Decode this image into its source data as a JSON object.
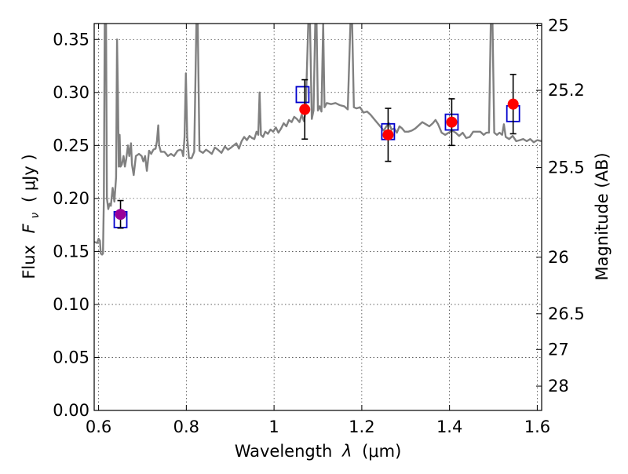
{
  "chart_data": {
    "type": "scatter",
    "xlabel_prefix": "Wavelength",
    "xlabel_symbol": "λ",
    "xlabel_unit": "(μm)",
    "ylabel_prefix": "Flux",
    "ylabel_symbol": "F",
    "ylabel_subscript": "ν",
    "ylabel_unit": "( μJy )",
    "y2label": "Magnitude (AB)",
    "xlim": [
      0.59,
      1.61
    ],
    "ylim": [
      0.0,
      0.365
    ],
    "grid": true,
    "x_ticks": [
      {
        "value": 0.6,
        "label": "0.6"
      },
      {
        "value": 0.8,
        "label": "0.8"
      },
      {
        "value": 1.0,
        "label": "1"
      },
      {
        "value": 1.2,
        "label": "1.2"
      },
      {
        "value": 1.4,
        "label": "1.4"
      },
      {
        "value": 1.6,
        "label": "1.6"
      }
    ],
    "y_ticks": [
      {
        "value": 0.0,
        "label": "0.00"
      },
      {
        "value": 0.05,
        "label": "0.05"
      },
      {
        "value": 0.1,
        "label": "0.10"
      },
      {
        "value": 0.15,
        "label": "0.15"
      },
      {
        "value": 0.2,
        "label": "0.20"
      },
      {
        "value": 0.25,
        "label": "0.25"
      },
      {
        "value": 0.3,
        "label": "0.30"
      },
      {
        "value": 0.35,
        "label": "0.35"
      }
    ],
    "y2_ticks": [
      {
        "value": 25,
        "label": "25"
      },
      {
        "value": 25.2,
        "label": "25.2"
      },
      {
        "value": 25.5,
        "label": "25.5"
      },
      {
        "value": 26,
        "label": "26"
      },
      {
        "value": 26.5,
        "label": "26.5"
      },
      {
        "value": 27,
        "label": "27"
      },
      {
        "value": 28,
        "label": "28"
      }
    ],
    "model_spectrum": {
      "color": "#808080",
      "points": [
        [
          0.59,
          0.159
        ],
        [
          0.597,
          0.158
        ],
        [
          0.6,
          0.162
        ],
        [
          0.603,
          0.16
        ],
        [
          0.605,
          0.148
        ],
        [
          0.608,
          0.147
        ],
        [
          0.61,
          0.148
        ],
        [
          0.612,
          0.2
        ],
        [
          0.614,
          0.365
        ],
        [
          0.617,
          0.365
        ],
        [
          0.619,
          0.2
        ],
        [
          0.622,
          0.19
        ],
        [
          0.625,
          0.195
        ],
        [
          0.628,
          0.193
        ],
        [
          0.632,
          0.21
        ],
        [
          0.636,
          0.197
        ],
        [
          0.64,
          0.22
        ],
        [
          0.642,
          0.35
        ],
        [
          0.644,
          0.3
        ],
        [
          0.646,
          0.23
        ],
        [
          0.648,
          0.26
        ],
        [
          0.65,
          0.23
        ],
        [
          0.653,
          0.232
        ],
        [
          0.657,
          0.24
        ],
        [
          0.66,
          0.23
        ],
        [
          0.663,
          0.237
        ],
        [
          0.667,
          0.25
        ],
        [
          0.67,
          0.24
        ],
        [
          0.674,
          0.252
        ],
        [
          0.676,
          0.232
        ],
        [
          0.68,
          0.222
        ],
        [
          0.685,
          0.24
        ],
        [
          0.692,
          0.242
        ],
        [
          0.698,
          0.24
        ],
        [
          0.702,
          0.235
        ],
        [
          0.706,
          0.24
        ],
        [
          0.71,
          0.226
        ],
        [
          0.715,
          0.245
        ],
        [
          0.72,
          0.242
        ],
        [
          0.725,
          0.246
        ],
        [
          0.73,
          0.247
        ],
        [
          0.733,
          0.254
        ],
        [
          0.736,
          0.269
        ],
        [
          0.738,
          0.25
        ],
        [
          0.742,
          0.244
        ],
        [
          0.75,
          0.244
        ],
        [
          0.758,
          0.24
        ],
        [
          0.765,
          0.242
        ],
        [
          0.772,
          0.24
        ],
        [
          0.78,
          0.245
        ],
        [
          0.786,
          0.246
        ],
        [
          0.79,
          0.245
        ],
        [
          0.793,
          0.24
        ],
        [
          0.796,
          0.258
        ],
        [
          0.799,
          0.318
        ],
        [
          0.802,
          0.258
        ],
        [
          0.806,
          0.238
        ],
        [
          0.812,
          0.238
        ],
        [
          0.818,
          0.244
        ],
        [
          0.823,
          0.365
        ],
        [
          0.826,
          0.365
        ],
        [
          0.83,
          0.245
        ],
        [
          0.838,
          0.243
        ],
        [
          0.845,
          0.246
        ],
        [
          0.852,
          0.244
        ],
        [
          0.858,
          0.242
        ],
        [
          0.865,
          0.248
        ],
        [
          0.872,
          0.246
        ],
        [
          0.88,
          0.243
        ],
        [
          0.888,
          0.249
        ],
        [
          0.895,
          0.246
        ],
        [
          0.902,
          0.248
        ],
        [
          0.908,
          0.25
        ],
        [
          0.914,
          0.252
        ],
        [
          0.92,
          0.247
        ],
        [
          0.926,
          0.254
        ],
        [
          0.932,
          0.258
        ],
        [
          0.938,
          0.255
        ],
        [
          0.944,
          0.259
        ],
        [
          0.95,
          0.257
        ],
        [
          0.955,
          0.256
        ],
        [
          0.96,
          0.263
        ],
        [
          0.964,
          0.26
        ],
        [
          0.967,
          0.3
        ],
        [
          0.97,
          0.26
        ],
        [
          0.975,
          0.258
        ],
        [
          0.98,
          0.263
        ],
        [
          0.986,
          0.261
        ],
        [
          0.992,
          0.265
        ],
        [
          0.998,
          0.263
        ],
        [
          1.004,
          0.267
        ],
        [
          1.01,
          0.262
        ],
        [
          1.016,
          0.266
        ],
        [
          1.022,
          0.271
        ],
        [
          1.028,
          0.268
        ],
        [
          1.034,
          0.274
        ],
        [
          1.04,
          0.272
        ],
        [
          1.046,
          0.277
        ],
        [
          1.052,
          0.275
        ],
        [
          1.058,
          0.272
        ],
        [
          1.063,
          0.279
        ],
        [
          1.068,
          0.273
        ],
        [
          1.072,
          0.282
        ],
        [
          1.078,
          0.365
        ],
        [
          1.082,
          0.365
        ],
        [
          1.086,
          0.275
        ],
        [
          1.09,
          0.283
        ],
        [
          1.094,
          0.365
        ],
        [
          1.097,
          0.365
        ],
        [
          1.1,
          0.283
        ],
        [
          1.104,
          0.287
        ],
        [
          1.108,
          0.282
        ],
        [
          1.112,
          0.365
        ],
        [
          1.115,
          0.286
        ],
        [
          1.12,
          0.29
        ],
        [
          1.13,
          0.289
        ],
        [
          1.14,
          0.29
        ],
        [
          1.15,
          0.288
        ],
        [
          1.16,
          0.287
        ],
        [
          1.168,
          0.284
        ],
        [
          1.174,
          0.365
        ],
        [
          1.178,
          0.365
        ],
        [
          1.182,
          0.286
        ],
        [
          1.188,
          0.285
        ],
        [
          1.196,
          0.286
        ],
        [
          1.204,
          0.281
        ],
        [
          1.212,
          0.282
        ],
        [
          1.22,
          0.279
        ],
        [
          1.228,
          0.275
        ],
        [
          1.236,
          0.271
        ],
        [
          1.244,
          0.267
        ],
        [
          1.25,
          0.264
        ],
        [
          1.256,
          0.268
        ],
        [
          1.262,
          0.271
        ],
        [
          1.268,
          0.265
        ],
        [
          1.274,
          0.266
        ],
        [
          1.28,
          0.262
        ],
        [
          1.286,
          0.268
        ],
        [
          1.292,
          0.266
        ],
        [
          1.298,
          0.263
        ],
        [
          1.306,
          0.263
        ],
        [
          1.314,
          0.264
        ],
        [
          1.322,
          0.266
        ],
        [
          1.33,
          0.269
        ],
        [
          1.338,
          0.272
        ],
        [
          1.346,
          0.27
        ],
        [
          1.354,
          0.268
        ],
        [
          1.362,
          0.271
        ],
        [
          1.368,
          0.274
        ],
        [
          1.374,
          0.27
        ],
        [
          1.382,
          0.262
        ],
        [
          1.39,
          0.26
        ],
        [
          1.398,
          0.262
        ],
        [
          1.406,
          0.264
        ],
        [
          1.414,
          0.262
        ],
        [
          1.422,
          0.259
        ],
        [
          1.43,
          0.262
        ],
        [
          1.438,
          0.257
        ],
        [
          1.446,
          0.258
        ],
        [
          1.454,
          0.263
        ],
        [
          1.462,
          0.263
        ],
        [
          1.47,
          0.263
        ],
        [
          1.478,
          0.26
        ],
        [
          1.484,
          0.262
        ],
        [
          1.49,
          0.262
        ],
        [
          1.494,
          0.365
        ],
        [
          1.498,
          0.365
        ],
        [
          1.502,
          0.262
        ],
        [
          1.508,
          0.26
        ],
        [
          1.514,
          0.262
        ],
        [
          1.52,
          0.26
        ],
        [
          1.524,
          0.27
        ],
        [
          1.528,
          0.258
        ],
        [
          1.536,
          0.256
        ],
        [
          1.544,
          0.259
        ],
        [
          1.552,
          0.254
        ],
        [
          1.56,
          0.255
        ],
        [
          1.568,
          0.256
        ],
        [
          1.576,
          0.254
        ],
        [
          1.584,
          0.256
        ],
        [
          1.592,
          0.253
        ],
        [
          1.6,
          0.255
        ],
        [
          1.61,
          0.254
        ]
      ]
    },
    "model_photometry": {
      "marker": "open-square",
      "color": "#0000cc",
      "points": [
        {
          "x": 0.65,
          "y": 0.18
        },
        {
          "x": 1.065,
          "y": 0.298
        },
        {
          "x": 1.26,
          "y": 0.263
        },
        {
          "x": 1.405,
          "y": 0.272
        },
        {
          "x": 1.545,
          "y": 0.28
        }
      ]
    },
    "observed_photometry": {
      "marker": "filled-circle",
      "color": "#ff0000",
      "errorbar_color": "#000000",
      "points": [
        {
          "x": 0.65,
          "y": 0.185,
          "err": 0.013,
          "color": "#990099"
        },
        {
          "x": 1.07,
          "y": 0.284,
          "err": 0.028
        },
        {
          "x": 1.26,
          "y": 0.26,
          "err": 0.025
        },
        {
          "x": 1.405,
          "y": 0.272,
          "err": 0.022
        },
        {
          "x": 1.545,
          "y": 0.289,
          "err": 0.028
        }
      ]
    }
  }
}
